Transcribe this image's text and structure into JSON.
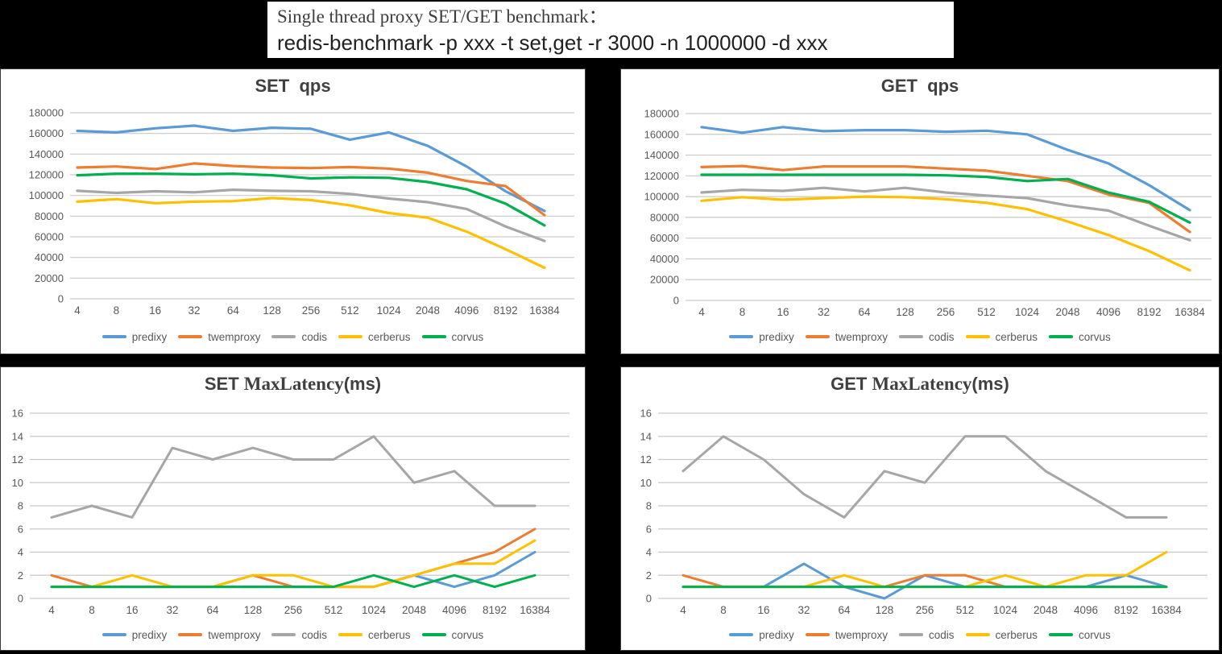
{
  "header": {
    "line1": "Single thread proxy SET/GET benchmark：",
    "line2": "redis-benchmark -p xxx -t set,get -r 3000 -n 1000000 -d xxx"
  },
  "colors": {
    "predixy": "#5B9BD5",
    "twemproxy": "#ED7D31",
    "codis": "#A6A6A6",
    "cerberus": "#FFC000",
    "corvus": "#00B050",
    "gridline": "#C9C9C9",
    "tick_label": "#595959",
    "title_text": "#404040"
  },
  "legend": [
    "predixy",
    "twemproxy",
    "codis",
    "cerberus",
    "corvus"
  ],
  "categories": [
    "4",
    "8",
    "16",
    "32",
    "64",
    "128",
    "256",
    "512",
    "1024",
    "2048",
    "4096",
    "8192",
    "16384"
  ],
  "chart_data": [
    {
      "id": "set-qps",
      "type": "line",
      "title": "SET  qps",
      "title_segments": [
        {
          "text": "SET  qps",
          "style": "sans"
        }
      ],
      "xlabel": "",
      "ylabel": "",
      "ylim": [
        0,
        180000
      ],
      "ytick": 20000,
      "grid": true,
      "legend_position": "bottom",
      "categories": [
        "4",
        "8",
        "16",
        "32",
        "64",
        "128",
        "256",
        "512",
        "1024",
        "2048",
        "4096",
        "8192",
        "16384"
      ],
      "series": [
        {
          "name": "predixy",
          "values": [
            162500,
            161000,
            165000,
            167500,
            162500,
            165500,
            164500,
            154000,
            161000,
            148000,
            128000,
            104000,
            85000
          ]
        },
        {
          "name": "twemproxy",
          "values": [
            127000,
            128000,
            125500,
            131000,
            128500,
            127000,
            126500,
            127500,
            126000,
            122000,
            114000,
            109000,
            81000
          ]
        },
        {
          "name": "codis",
          "values": [
            104500,
            102500,
            104000,
            103000,
            105500,
            104500,
            104000,
            101500,
            97000,
            93500,
            87000,
            70000,
            56000
          ]
        },
        {
          "name": "cerberus",
          "values": [
            94000,
            96500,
            92500,
            94000,
            94500,
            97500,
            95500,
            90500,
            83000,
            78500,
            65000,
            48000,
            30000
          ]
        },
        {
          "name": "corvus",
          "values": [
            119500,
            121000,
            121000,
            120500,
            121000,
            119500,
            116500,
            117500,
            117000,
            113000,
            106000,
            92000,
            71000
          ]
        }
      ]
    },
    {
      "id": "get-qps",
      "type": "line",
      "title": "GET  qps",
      "title_segments": [
        {
          "text": "GET  qps",
          "style": "sans"
        }
      ],
      "xlabel": "",
      "ylabel": "",
      "ylim": [
        0,
        180000
      ],
      "ytick": 20000,
      "grid": true,
      "legend_position": "bottom",
      "categories": [
        "4",
        "8",
        "16",
        "32",
        "64",
        "128",
        "256",
        "512",
        "1024",
        "2048",
        "4096",
        "8192",
        "16384"
      ],
      "series": [
        {
          "name": "predixy",
          "values": [
            167000,
            161500,
            167000,
            163000,
            164000,
            164000,
            162500,
            163500,
            160000,
            145000,
            132000,
            111000,
            87000
          ]
        },
        {
          "name": "twemproxy",
          "values": [
            128500,
            129500,
            125500,
            129000,
            129000,
            129000,
            127000,
            125000,
            120000,
            115000,
            102000,
            94000,
            66000
          ]
        },
        {
          "name": "codis",
          "values": [
            104000,
            106500,
            105500,
            108500,
            105000,
            108500,
            104000,
            101000,
            98500,
            91500,
            86500,
            72000,
            58000
          ]
        },
        {
          "name": "cerberus",
          "values": [
            96000,
            99500,
            97000,
            98500,
            100000,
            99500,
            97500,
            94000,
            88000,
            76000,
            63000,
            47500,
            29000
          ]
        },
        {
          "name": "corvus",
          "values": [
            121000,
            121000,
            121000,
            121000,
            121000,
            121000,
            120500,
            119000,
            115000,
            117000,
            104000,
            95000,
            75000
          ]
        }
      ]
    },
    {
      "id": "set-maxlatency",
      "type": "line",
      "title": "SET MaxLatency(ms)",
      "title_segments": [
        {
          "text": "SET ",
          "style": "sans"
        },
        {
          "text": "MaxLatency",
          "style": "serif"
        },
        {
          "text": "(ms)",
          "style": "sans"
        }
      ],
      "xlabel": "",
      "ylabel": "",
      "ylim": [
        0,
        16
      ],
      "ytick": 2,
      "grid": true,
      "legend_position": "bottom",
      "categories": [
        "4",
        "8",
        "16",
        "32",
        "64",
        "128",
        "256",
        "512",
        "1024",
        "2048",
        "4096",
        "8192",
        "16384"
      ],
      "series": [
        {
          "name": "predixy",
          "values": [
            1,
            1,
            1,
            1,
            1,
            1,
            1,
            1,
            1,
            2,
            1,
            2,
            4
          ]
        },
        {
          "name": "twemproxy",
          "values": [
            2,
            1,
            1,
            1,
            1,
            2,
            1,
            1,
            1,
            2,
            3,
            4,
            6
          ]
        },
        {
          "name": "codis",
          "values": [
            7,
            8,
            7,
            13,
            12,
            13,
            12,
            12,
            14,
            10,
            11,
            8,
            8
          ]
        },
        {
          "name": "cerberus",
          "values": [
            1,
            1,
            2,
            1,
            1,
            2,
            2,
            1,
            1,
            2,
            3,
            3,
            5
          ]
        },
        {
          "name": "corvus",
          "values": [
            1,
            1,
            1,
            1,
            1,
            1,
            1,
            1,
            2,
            1,
            2,
            1,
            2
          ]
        }
      ]
    },
    {
      "id": "get-maxlatency",
      "type": "line",
      "title": "GET MaxLatency(ms)",
      "title_segments": [
        {
          "text": "GET ",
          "style": "sans"
        },
        {
          "text": "MaxLatency",
          "style": "serif"
        },
        {
          "text": "(ms)",
          "style": "sans"
        }
      ],
      "xlabel": "",
      "ylabel": "",
      "ylim": [
        0,
        16
      ],
      "ytick": 2,
      "grid": true,
      "legend_position": "bottom",
      "categories": [
        "4",
        "8",
        "16",
        "32",
        "64",
        "128",
        "256",
        "512",
        "1024",
        "2048",
        "4096",
        "8192",
        "16384"
      ],
      "series": [
        {
          "name": "predixy",
          "values": [
            1,
            1,
            1,
            3,
            1,
            0,
            2,
            1,
            1,
            1,
            1,
            2,
            1
          ]
        },
        {
          "name": "twemproxy",
          "values": [
            2,
            1,
            1,
            1,
            1,
            1,
            2,
            2,
            1,
            1,
            1,
            1,
            1
          ]
        },
        {
          "name": "codis",
          "values": [
            11,
            14,
            12,
            9,
            7,
            11,
            10,
            14,
            14,
            11,
            9,
            7,
            7
          ]
        },
        {
          "name": "cerberus",
          "values": [
            1,
            1,
            1,
            1,
            2,
            1,
            1,
            1,
            2,
            1,
            2,
            2,
            4
          ]
        },
        {
          "name": "corvus",
          "values": [
            1,
            1,
            1,
            1,
            1,
            1,
            1,
            1,
            1,
            1,
            1,
            1,
            1
          ]
        }
      ]
    }
  ]
}
